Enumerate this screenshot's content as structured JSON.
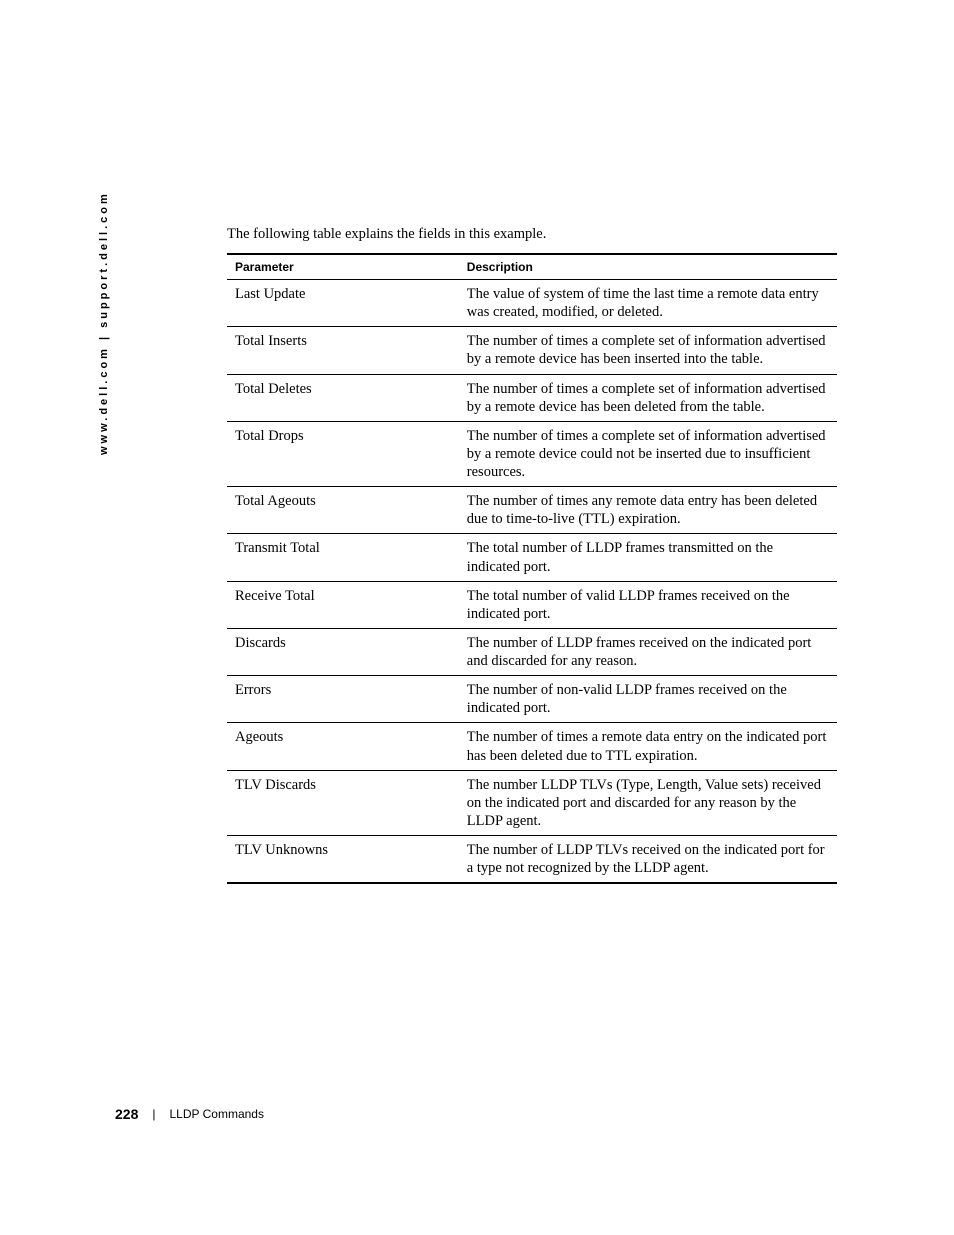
{
  "sidebar_url": "www.dell.com | support.dell.com",
  "intro_text": "The following table explains the fields in this example.",
  "table": {
    "headers": {
      "parameter": "Parameter",
      "description": "Description"
    },
    "rows": [
      {
        "parameter": "Last Update",
        "description": "The value of system of time the last time a remote data entry was created, modified, or deleted."
      },
      {
        "parameter": "Total Inserts",
        "description": "The number of times a complete set of information advertised by a remote device has been inserted into the table."
      },
      {
        "parameter": "Total Deletes",
        "description": "The number of times a complete set of information advertised by a remote device has been deleted from the table."
      },
      {
        "parameter": "Total Drops",
        "description": "The number of times a complete set of information advertised by a remote device could not be inserted due to insufficient resources."
      },
      {
        "parameter": "Total Ageouts",
        "description": "The number of times any remote data entry has been deleted due to time-to-live (TTL) expiration."
      },
      {
        "parameter": "Transmit Total",
        "description": "The total number of LLDP frames transmitted on the indicated port."
      },
      {
        "parameter": "Receive Total",
        "description": "The total number of valid LLDP frames received on the indicated port."
      },
      {
        "parameter": "Discards",
        "description": "The number of LLDP frames received on the indicated port and discarded for any reason."
      },
      {
        "parameter": "Errors",
        "description": "The number of non-valid LLDP frames received on the indicated port."
      },
      {
        "parameter": "Ageouts",
        "description": "The number of times a remote data entry on the indicated port has been deleted due to TTL expiration."
      },
      {
        "parameter": "TLV Discards",
        "description": "The number LLDP TLVs (Type, Length, Value sets) received on the indicated port and discarded for any reason by the LLDP agent."
      },
      {
        "parameter": "TLV Unknowns",
        "description": "The number of LLDP TLVs received on the indicated port for a type not recognized by the LLDP agent."
      }
    ]
  },
  "footer": {
    "page_number": "228",
    "divider": "|",
    "section_name": "LLDP Commands"
  }
}
